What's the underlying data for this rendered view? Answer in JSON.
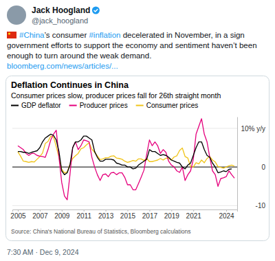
{
  "tweet": {
    "name": "Jack Hoogland",
    "handle": "@jack_hoogland",
    "text": [
      [
        "#China",
        "’s consumer ",
        "#inflation",
        " decelerated in November, in a sign"
      ],
      [
        "government efforts to support the economy and sentiment haven’t been"
      ],
      [
        "enough to turn around the weak demand."
      ]
    ],
    "link": "bloomberg.com/news/articles/...",
    "timestamp": "7:30 AM · Dec 9, 2024"
  },
  "chart_data": {
    "type": "line",
    "title": "Deflation Continues in China",
    "subtitle": "Consumer prices slow, producer prices fall for 26th straight month",
    "source": "Source: China's National Bureau of Statistics, Bloomberg calculations",
    "x": [
      2005,
      2005.25,
      2005.5,
      2005.75,
      2006,
      2006.25,
      2006.5,
      2006.75,
      2007,
      2007.25,
      2007.5,
      2007.75,
      2008,
      2008.25,
      2008.5,
      2008.75,
      2009,
      2009.25,
      2009.5,
      2009.75,
      2010,
      2010.25,
      2010.5,
      2010.75,
      2011,
      2011.25,
      2011.5,
      2011.75,
      2012,
      2012.25,
      2012.5,
      2012.75,
      2013,
      2013.25,
      2013.5,
      2013.75,
      2014,
      2014.25,
      2014.5,
      2014.75,
      2015,
      2015.25,
      2015.5,
      2015.75,
      2016,
      2016.25,
      2016.5,
      2016.75,
      2017,
      2017.25,
      2017.5,
      2017.75,
      2018,
      2018.25,
      2018.5,
      2018.75,
      2019,
      2019.25,
      2019.5,
      2019.75,
      2020,
      2020.25,
      2020.5,
      2020.75,
      2021,
      2021.25,
      2021.5,
      2021.75,
      2022,
      2022.25,
      2022.5,
      2022.75,
      2023,
      2023.25,
      2023.5,
      2023.75,
      2024,
      2024.25,
      2024.5,
      2024.75
    ],
    "series": [
      {
        "name": "GDP deflator",
        "color": "#000000",
        "values": [
          4.0,
          4.0,
          3.8,
          3.8,
          3.5,
          3.8,
          4.0,
          4.2,
          5.0,
          6.5,
          7.5,
          8.0,
          8.5,
          8.2,
          7.0,
          4.0,
          -1.0,
          -2.0,
          -1.5,
          0.5,
          5.0,
          6.5,
          6.5,
          7.0,
          8.0,
          8.0,
          7.5,
          7.0,
          4.0,
          2.5,
          1.5,
          1.5,
          2.0,
          2.0,
          2.0,
          1.8,
          1.0,
          0.8,
          0.5,
          0.5,
          0.0,
          0.0,
          -0.5,
          -0.3,
          0.5,
          1.0,
          1.5,
          2.0,
          4.5,
          4.0,
          4.0,
          3.5,
          3.0,
          3.2,
          3.0,
          2.5,
          1.8,
          1.5,
          1.2,
          1.0,
          0.0,
          -0.5,
          0.5,
          1.0,
          3.0,
          5.0,
          6.5,
          6.5,
          4.5,
          3.0,
          2.5,
          1.0,
          0.0,
          -1.5,
          -1.3,
          -1.0,
          -1.2,
          -0.6,
          -0.5,
          null
        ]
      },
      {
        "name": "Producer prices",
        "color": "#e5007d",
        "values": [
          5.5,
          5.0,
          4.5,
          3.5,
          3.0,
          3.5,
          3.5,
          3.0,
          2.8,
          2.7,
          2.5,
          4.5,
          7.0,
          8.5,
          9.5,
          2.5,
          -4.0,
          -7.5,
          -8.5,
          -2.0,
          5.0,
          6.5,
          4.5,
          5.5,
          7.0,
          6.8,
          6.5,
          2.5,
          0.0,
          -2.0,
          -3.5,
          -2.0,
          -1.8,
          -2.5,
          -1.5,
          -1.4,
          -2.0,
          -1.5,
          -1.5,
          -2.7,
          -4.6,
          -4.6,
          -5.9,
          -5.9,
          -4.3,
          -2.6,
          -0.8,
          3.3,
          7.0,
          5.5,
          6.5,
          5.5,
          3.5,
          4.5,
          3.8,
          1.5,
          0.5,
          0.0,
          -1.0,
          -1.4,
          0.0,
          -3.5,
          -2.0,
          -1.0,
          2.0,
          8.5,
          10.5,
          12.5,
          8.5,
          6.5,
          2.5,
          -1.0,
          -2.0,
          -5.0,
          -3.0,
          -2.8,
          -2.5,
          -1.0,
          -2.0,
          -2.9
        ]
      },
      {
        "name": "Consumer prices",
        "color": "#f0c419",
        "values": [
          3.9,
          2.8,
          1.5,
          1.4,
          1.2,
          1.4,
          1.3,
          2.0,
          2.7,
          3.6,
          6.1,
          6.6,
          8.0,
          7.8,
          5.3,
          2.5,
          -0.6,
          -1.5,
          -1.3,
          0.7,
          2.2,
          2.9,
          3.5,
          4.7,
          5.0,
          5.7,
          6.3,
          4.6,
          3.8,
          2.9,
          1.9,
          2.1,
          2.4,
          2.4,
          2.8,
          2.9,
          2.3,
          2.2,
          2.0,
          1.5,
          1.2,
          1.4,
          1.7,
          1.5,
          2.1,
          2.1,
          1.7,
          2.2,
          1.4,
          1.4,
          1.6,
          1.8,
          2.2,
          1.8,
          2.3,
          2.2,
          1.8,
          2.6,
          2.9,
          4.3,
          4.9,
          2.7,
          2.3,
          0.1,
          0.0,
          1.1,
          0.8,
          1.8,
          1.1,
          2.2,
          2.7,
          1.8,
          1.3,
          0.1,
          -0.1,
          -0.3,
          0.0,
          0.3,
          0.5,
          0.2
        ]
      }
    ],
    "xlim": [
      2004.5,
      2025
    ],
    "xticks": [
      2005,
      2007,
      2009,
      2011,
      2013,
      2015,
      2017,
      2019,
      2021,
      2024
    ],
    "ylim": [
      -11,
      13
    ],
    "yticks": [
      {
        "value": 10,
        "label": "10% y/y"
      },
      0,
      -10
    ],
    "grid": true,
    "legend": "top"
  }
}
